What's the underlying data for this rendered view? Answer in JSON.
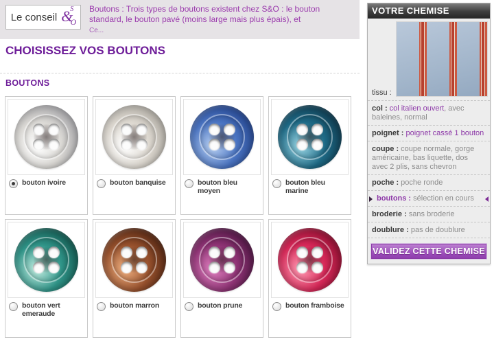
{
  "banner": {
    "conseil_label": "Le conseil",
    "logo_s": "S",
    "logo_amp": "&",
    "logo_o": "O",
    "text": "Boutons : Trois types de boutons existent chez S&O : le bouton standard, le bouton pavé (moins large mais plus épais), et",
    "more_link": "Ce..."
  },
  "page": {
    "title": "CHOISISSEZ VOS BOUTONS",
    "section_title": "BOUTONS"
  },
  "grid": {
    "items": [
      {
        "label": "bouton ivoire",
        "selected": true,
        "colors": {
          "hl": "#ffffff",
          "mid": "#dbd9d5",
          "dark": "#9a9aa0"
        }
      },
      {
        "label": "bouton banquise",
        "selected": false,
        "colors": {
          "hl": "#ffffff",
          "mid": "#ddd8d0",
          "dark": "#a8a49c"
        }
      },
      {
        "label": "bouton bleu moyen",
        "selected": false,
        "colors": {
          "hl": "#b9d1f2",
          "mid": "#4a74c2",
          "dark": "#1c3a82"
        }
      },
      {
        "label": "bouton bleu marine",
        "selected": false,
        "colors": {
          "hl": "#9cd8e6",
          "mid": "#1e6a86",
          "dark": "#0c2e40"
        }
      },
      {
        "label": "bouton vert emeraude",
        "selected": false,
        "colors": {
          "hl": "#c4eee2",
          "mid": "#2f9488",
          "dark": "#0e4a42"
        }
      },
      {
        "label": "bouton marron",
        "selected": false,
        "colors": {
          "hl": "#f0b080",
          "mid": "#96502c",
          "dark": "#431d0e"
        }
      },
      {
        "label": "bouton prune",
        "selected": false,
        "colors": {
          "hl": "#e080c0",
          "mid": "#8e3374",
          "dark": "#401038"
        }
      },
      {
        "label": "bouton framboise",
        "selected": false,
        "colors": {
          "hl": "#ff9cb4",
          "mid": "#d62858",
          "dark": "#7e0a28"
        }
      }
    ]
  },
  "sidebar": {
    "header": "VOTRE CHEMISE",
    "tissu_label": "tissu :",
    "rows": [
      {
        "label": "col : ",
        "value_purple": "col italien ouvert",
        "value_gray": ", avec baleines, normal"
      },
      {
        "label": "poignet : ",
        "value_purple": "poignet cassé 1 bouton",
        "value_gray": ""
      },
      {
        "label": "coupe : ",
        "value_purple": "",
        "value_gray": "coupe normale, gorge américaine, bas liquette, dos avec 2 plis, sans chevron"
      },
      {
        "label": "poche : ",
        "value_purple": "",
        "value_gray": "poche ronde"
      },
      {
        "label": "boutons : ",
        "value_purple": "",
        "value_gray": "sélection en cours",
        "current": true
      },
      {
        "label": "broderie : ",
        "value_purple": "",
        "value_gray": "sans broderie"
      },
      {
        "label": "doublure : ",
        "value_purple": "",
        "value_gray": "pas de doublure"
      }
    ],
    "validate_button": "VALIDEZ CETTE CHEMISE"
  },
  "colors": {
    "accent_purple": "#6e1d99",
    "link_purple": "#8d39a8",
    "banner_bg": "#e6e3e6",
    "sidebar_bg": "#ededed",
    "validate_bg": "#9a4ab8"
  }
}
